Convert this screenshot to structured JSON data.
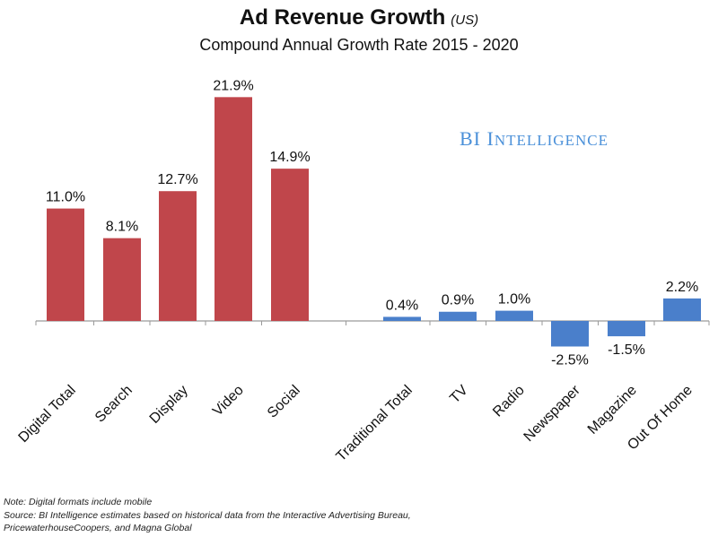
{
  "chart_data": {
    "type": "bar",
    "title": "Ad Revenue Growth",
    "title_suffix": "(US)",
    "subtitle": "Compound Annual Growth Rate 2015 - 2020",
    "categories": [
      "Digital Total",
      "Search",
      "Display",
      "Video",
      "Social",
      "Traditional Total",
      "TV",
      "Radio",
      "Newspaper",
      "Magazine",
      "Out Of Home"
    ],
    "values": [
      11.0,
      8.1,
      12.7,
      21.9,
      14.9,
      0.4,
      0.9,
      1.0,
      -2.5,
      -1.5,
      2.2
    ],
    "data_labels": [
      "11.0%",
      "8.1%",
      "12.7%",
      "21.9%",
      "14.9%",
      "0.4%",
      "0.9%",
      "1.0%",
      "-2.5%",
      "-1.5%",
      "2.2%"
    ],
    "groups": [
      {
        "name": "Digital",
        "members": [
          "Digital Total",
          "Search",
          "Display",
          "Video",
          "Social"
        ],
        "color": "#c0464b"
      },
      {
        "name": "Traditional",
        "members": [
          "Traditional Total",
          "TV",
          "Radio",
          "Newspaper",
          "Magazine",
          "Out Of Home"
        ],
        "color": "#4a7fcb"
      }
    ],
    "xlabel": "",
    "ylabel": "",
    "ylim": [
      -3,
      22
    ],
    "grid": false,
    "legend": "none"
  },
  "brand": {
    "first": "BI",
    "second_cap": "I",
    "second_rest": "NTELLIGENCE"
  },
  "notes": {
    "line1": "Note: Digital formats include mobile",
    "line2": "Source: BI Intelligence estimates based on historical data from the Interactive Advertising Bureau,",
    "line3": "PricewaterhouseCoopers, and Magna Global"
  }
}
